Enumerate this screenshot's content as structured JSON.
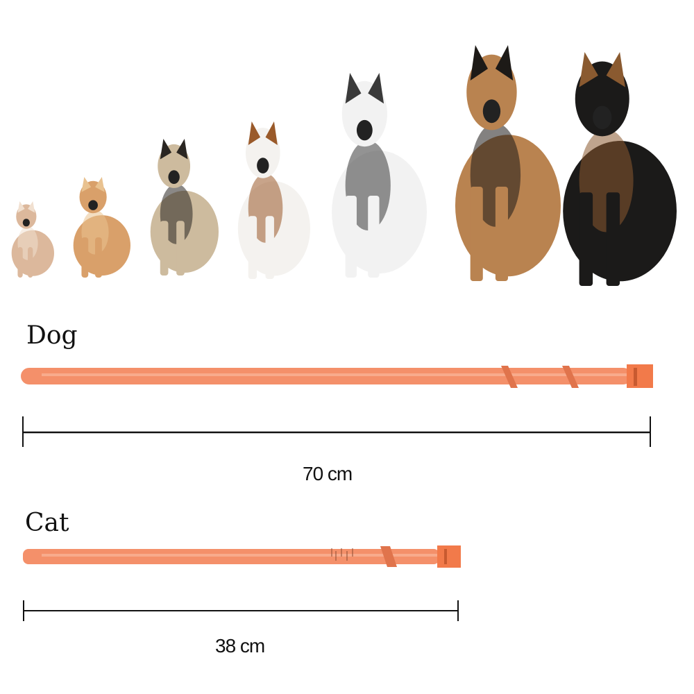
{
  "dogs": [
    {
      "breed": "chihuahua",
      "body": "#dcb89c",
      "accent": "#f1e0d0"
    },
    {
      "breed": "pomeranian",
      "body": "#d9a06a",
      "accent": "#e9c290"
    },
    {
      "breed": "pug",
      "body": "#cdbb9e",
      "accent": "#2a2622"
    },
    {
      "breed": "beagle",
      "body": "#f4f2ef",
      "accent": "#9a5a2a"
    },
    {
      "breed": "husky",
      "body": "#f2f2f2",
      "accent": "#3a3a3a"
    },
    {
      "breed": "german-shepherd",
      "body": "#b98350",
      "accent": "#1d1a17"
    },
    {
      "breed": "rottweiler",
      "body": "#1b1a19",
      "accent": "#8a5a30"
    }
  ],
  "dog_section": {
    "label": "Dog",
    "length": "70 cm"
  },
  "cat_section": {
    "label": "Cat",
    "length": "38 cm"
  },
  "colors": {
    "collar": "#f4906a",
    "collar_dark": "#e0744c",
    "rule": "#111111"
  }
}
